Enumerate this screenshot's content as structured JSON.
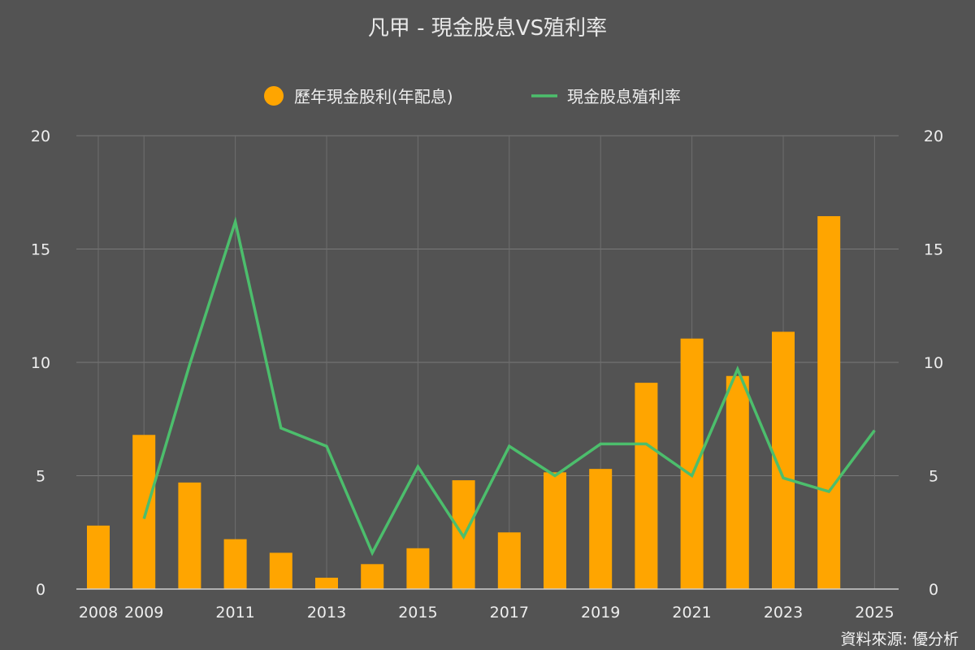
{
  "chart_data": {
    "type": "bar",
    "title": "凡甲 - 現金股息VS殖利率",
    "source": "資料來源: 優分析",
    "x": [
      "2008",
      "2009",
      "2010",
      "2011",
      "2012",
      "2013",
      "2014",
      "2015",
      "2016",
      "2017",
      "2018",
      "2019",
      "2020",
      "2021",
      "2022",
      "2023",
      "2024",
      "2025"
    ],
    "x_tick_labels": [
      "2008",
      "2009",
      "2011",
      "2013",
      "2015",
      "2017",
      "2019",
      "2021",
      "2023",
      "2025"
    ],
    "y_left": {
      "ylim": [
        0,
        20
      ],
      "ticks": [
        "0",
        "5",
        "10",
        "15",
        "20"
      ]
    },
    "y_right": {
      "ylim": [
        0,
        20
      ],
      "ticks": [
        "0",
        "5",
        "10",
        "15",
        "20"
      ]
    },
    "grid": true,
    "legend_position": "top-center",
    "series": [
      {
        "name": "歷年現金股利(年配息)",
        "type": "bar",
        "color": "#FFA500",
        "axis": "left",
        "values": [
          2.8,
          6.8,
          4.7,
          2.2,
          1.6,
          0.5,
          1.1,
          1.8,
          4.8,
          2.5,
          5.15,
          5.3,
          9.1,
          11.05,
          9.4,
          11.35,
          16.45,
          null
        ]
      },
      {
        "name": "現金股息殖利率",
        "type": "line",
        "color": "#4CBE6C",
        "axis": "right",
        "values": [
          null,
          3.1,
          9.9,
          16.2,
          7.1,
          6.3,
          1.6,
          5.4,
          2.3,
          6.3,
          5.0,
          6.4,
          6.4,
          5.0,
          9.7,
          4.9,
          4.3,
          7.0
        ]
      }
    ]
  }
}
